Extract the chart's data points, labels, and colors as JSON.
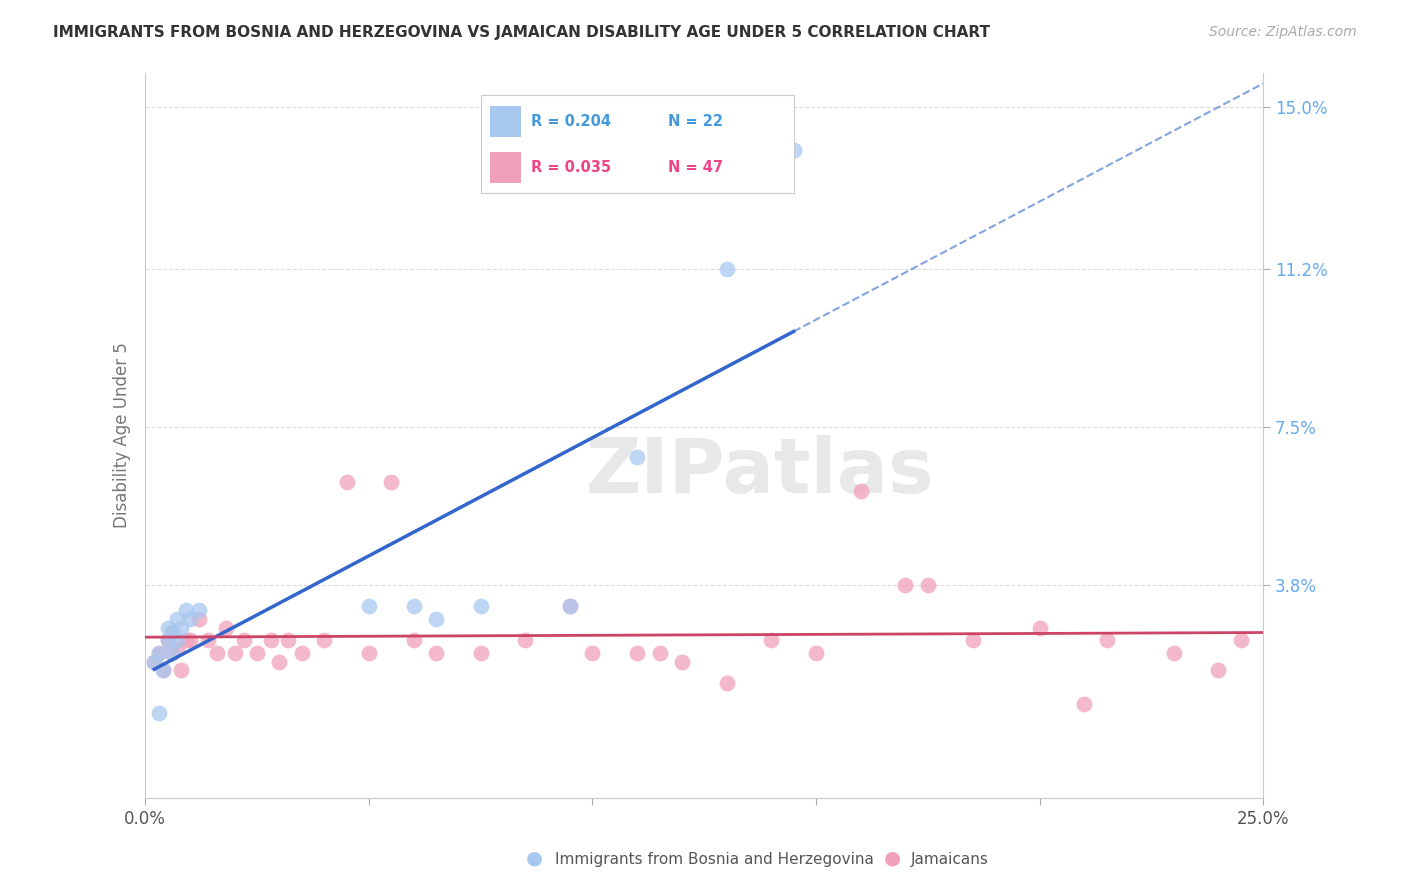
{
  "title": "IMMIGRANTS FROM BOSNIA AND HERZEGOVINA VS JAMAICAN DISABILITY AGE UNDER 5 CORRELATION CHART",
  "source": "Source: ZipAtlas.com",
  "ylabel": "Disability Age Under 5",
  "xlim": [
    0.0,
    0.25
  ],
  "ylim": [
    -0.012,
    0.158
  ],
  "legend_blue_R": "R = 0.204",
  "legend_blue_N": "N = 22",
  "legend_pink_R": "R = 0.035",
  "legend_pink_N": "N = 47",
  "legend_blue_label": "Immigrants from Bosnia and Herzegovina",
  "legend_pink_label": "Jamaicans",
  "blue_color": "#a8c8f0",
  "pink_color": "#f0a0b8",
  "blue_line_color": "#3366cc",
  "pink_line_color": "#cc4466",
  "blue_text_color": "#4499dd",
  "pink_text_color": "#ee4488",
  "ytick_color": "#66aaee",
  "watermark": "ZIPatlas",
  "background_color": "#ffffff",
  "grid_color": "#dddddd",
  "blue_x": [
    0.002,
    0.003,
    0.003,
    0.004,
    0.005,
    0.005,
    0.006,
    0.006,
    0.007,
    0.007,
    0.008,
    0.009,
    0.01,
    0.012,
    0.05,
    0.06,
    0.065,
    0.075,
    0.095,
    0.11,
    0.13,
    0.145
  ],
  "blue_y": [
    0.02,
    0.008,
    0.022,
    0.018,
    0.025,
    0.028,
    0.022,
    0.027,
    0.025,
    0.03,
    0.028,
    0.032,
    0.03,
    0.032,
    0.033,
    0.033,
    0.03,
    0.033,
    0.033,
    0.068,
    0.112,
    0.14
  ],
  "pink_x": [
    0.002,
    0.003,
    0.004,
    0.005,
    0.006,
    0.006,
    0.007,
    0.008,
    0.009,
    0.01,
    0.012,
    0.014,
    0.016,
    0.018,
    0.02,
    0.022,
    0.025,
    0.028,
    0.03,
    0.032,
    0.035,
    0.04,
    0.045,
    0.05,
    0.055,
    0.06,
    0.065,
    0.075,
    0.085,
    0.095,
    0.1,
    0.11,
    0.115,
    0.12,
    0.13,
    0.14,
    0.15,
    0.16,
    0.17,
    0.175,
    0.185,
    0.2,
    0.21,
    0.215,
    0.23,
    0.24,
    0.245
  ],
  "pink_y": [
    0.02,
    0.022,
    0.018,
    0.025,
    0.022,
    0.027,
    0.023,
    0.018,
    0.025,
    0.025,
    0.03,
    0.025,
    0.022,
    0.028,
    0.022,
    0.025,
    0.022,
    0.025,
    0.02,
    0.025,
    0.022,
    0.025,
    0.062,
    0.022,
    0.062,
    0.025,
    0.022,
    0.022,
    0.025,
    0.033,
    0.022,
    0.022,
    0.022,
    0.02,
    0.015,
    0.025,
    0.022,
    0.06,
    0.038,
    0.038,
    0.025,
    0.028,
    0.01,
    0.025,
    0.022,
    0.018,
    0.025
  ]
}
